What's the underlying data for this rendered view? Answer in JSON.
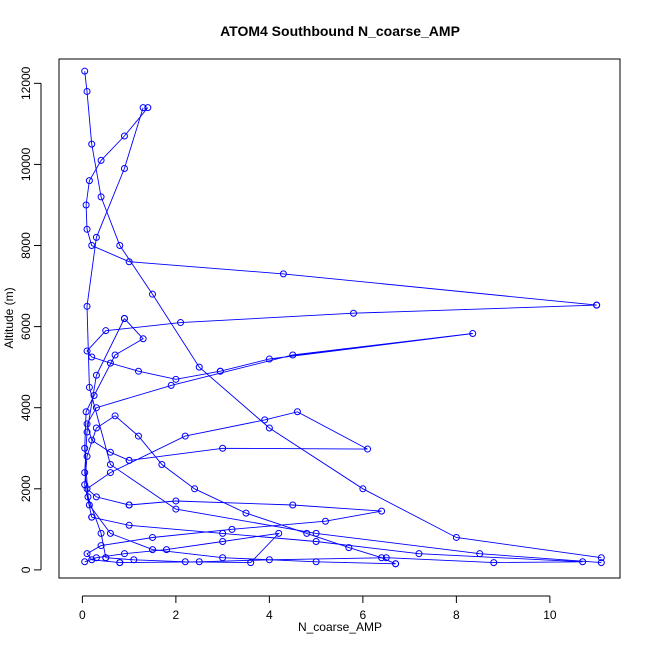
{
  "chart_data": {
    "type": "line",
    "title": "ATOM4 Southbound N_coarse_AMP",
    "xlabel": "N_coarse_AMP",
    "ylabel": "Altitude (m)",
    "xlim": [
      -0.5,
      11.5
    ],
    "ylim": [
      -200,
      12600
    ],
    "xticks": [
      0,
      2,
      4,
      6,
      8,
      10
    ],
    "yticks": [
      0,
      2000,
      4000,
      6000,
      8000,
      10000,
      12000
    ],
    "grid": false,
    "legend": "none",
    "marker": "open-circle",
    "series_color": "#0000ff",
    "series": [
      {
        "x": [
          0.05,
          0.1,
          0.2,
          0.4,
          0.8,
          1.5,
          2.5,
          4.0,
          6.0,
          8.0,
          11.1
        ],
        "y": [
          12300,
          11800,
          10500,
          9200,
          8000,
          6800,
          5000,
          3500,
          2000,
          800,
          300
        ]
      },
      {
        "x": [
          11.1,
          8.5,
          5.0,
          2.0,
          0.6,
          0.15,
          0.1,
          0.3,
          0.9,
          1.3
        ],
        "y": [
          180,
          400,
          900,
          1500,
          2600,
          4500,
          6500,
          8200,
          9900,
          11400
        ]
      },
      {
        "x": [
          1.4,
          0.9,
          0.4,
          0.15,
          0.08,
          0.1,
          0.2,
          1.0,
          4.3,
          11.0
        ],
        "y": [
          11400,
          10700,
          10100,
          9600,
          9000,
          8400,
          8000,
          7600,
          7300,
          6530
        ]
      },
      {
        "x": [
          11.0,
          5.8,
          2.1,
          0.5,
          0.1,
          0.2,
          0.6,
          1.2,
          2.0,
          2.95
        ],
        "y": [
          6530,
          6330,
          6100,
          5900,
          5400,
          5250,
          5100,
          4900,
          4700,
          4900
        ]
      },
      {
        "x": [
          2.95,
          4.0,
          8.35,
          4.5,
          1.9,
          0.3,
          0.1,
          0.2,
          0.6,
          1.0
        ],
        "y": [
          4900,
          5200,
          5830,
          5300,
          4550,
          4000,
          3600,
          3200,
          2900,
          2700
        ]
      },
      {
        "x": [
          1.0,
          3.0,
          6.1,
          4.6,
          3.9,
          2.2,
          0.6,
          0.1,
          0.3,
          1.0
        ],
        "y": [
          2700,
          3000,
          2980,
          3900,
          3700,
          3300,
          2400,
          2000,
          1800,
          1600
        ]
      },
      {
        "x": [
          1.0,
          2.0,
          4.5,
          6.4,
          5.2,
          3.2,
          1.5,
          0.4,
          0.1,
          0.2,
          0.8
        ],
        "y": [
          1600,
          1700,
          1600,
          1450,
          1200,
          1000,
          800,
          600,
          400,
          250,
          180
        ]
      },
      {
        "x": [
          0.8,
          2.5,
          4.0,
          6.5,
          8.8,
          10.7,
          7.2,
          5.0,
          3.0,
          1.0,
          0.2
        ],
        "y": [
          180,
          200,
          250,
          300,
          180,
          200,
          400,
          700,
          900,
          1100,
          1300
        ]
      },
      {
        "x": [
          0.2,
          0.05,
          0.1,
          0.3,
          0.7,
          1.2,
          1.7,
          2.4,
          3.5,
          4.8,
          5.7,
          6.4,
          6.7
        ],
        "y": [
          1300,
          2100,
          2800,
          3500,
          3800,
          3300,
          2600,
          2000,
          1400,
          900,
          550,
          300,
          150
        ]
      },
      {
        "x": [
          6.7,
          5.0,
          3.0,
          1.5,
          0.6,
          0.15,
          0.05,
          0.1,
          0.3,
          0.9
        ],
        "y": [
          150,
          200,
          300,
          500,
          900,
          1600,
          2400,
          3400,
          4800,
          6200
        ]
      },
      {
        "x": [
          0.9,
          1.3,
          0.7,
          0.25,
          0.08,
          0.05,
          0.12,
          0.4,
          0.5
        ],
        "y": [
          6200,
          5700,
          5300,
          4300,
          3900,
          3000,
          1800,
          900,
          300
        ]
      },
      {
        "x": [
          0.5,
          1.1,
          2.2,
          3.6,
          4.2,
          3.0,
          1.8,
          0.9,
          0.3,
          0.05
        ],
        "y": [
          300,
          250,
          200,
          180,
          900,
          700,
          500,
          400,
          300,
          200
        ]
      }
    ]
  }
}
